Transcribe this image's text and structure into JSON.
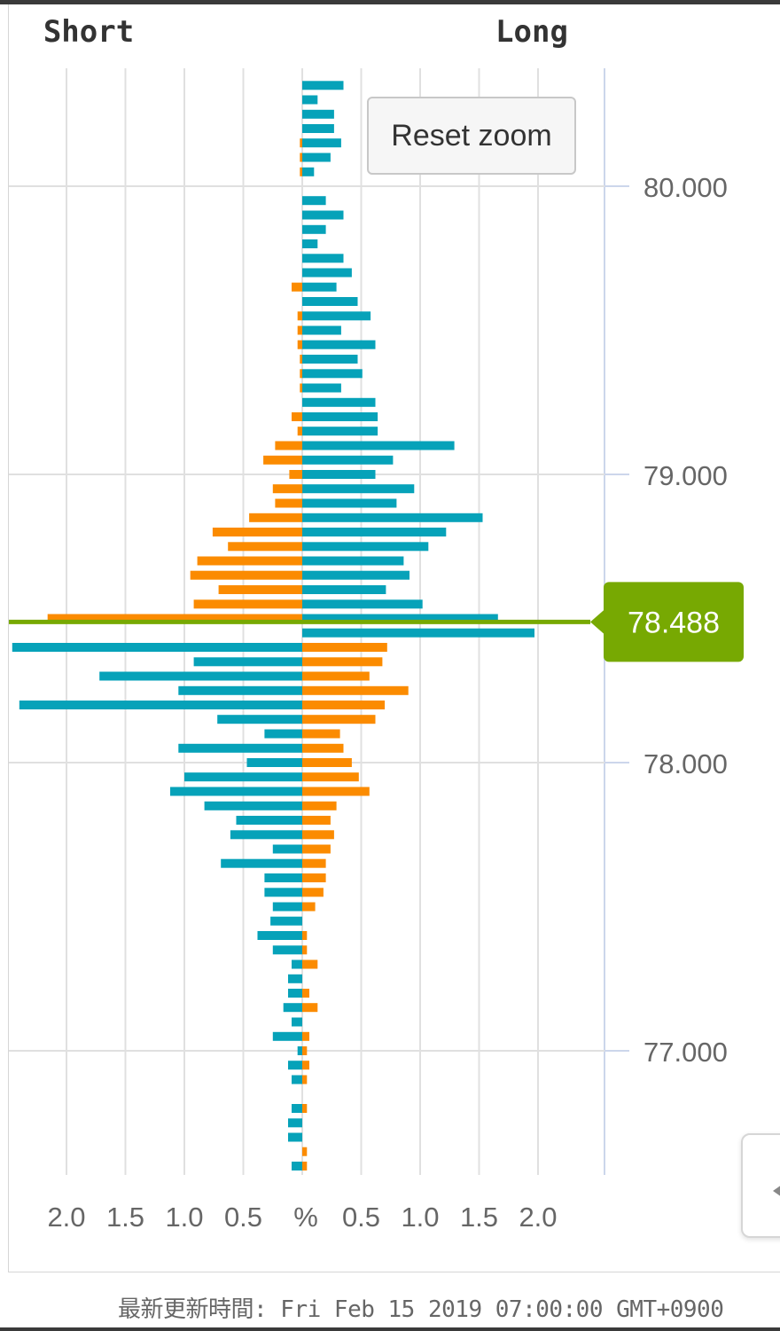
{
  "chart_data": {
    "type": "bar",
    "headers": {
      "left": "Short",
      "right": "Long"
    },
    "x_tick_labels": [
      "2.0",
      "1.5",
      "1.0",
      "0.5",
      "%",
      "0.5",
      "1.0",
      "1.5",
      "2.0"
    ],
    "y_tick_labels": [
      "80.000",
      "79.000",
      "78.000",
      "77.000"
    ],
    "y_ticks": [
      80.0,
      79.0,
      78.0,
      77.0
    ],
    "current_price": {
      "value": 78.488,
      "label": "78.488"
    },
    "colors": {
      "orders": "#06a2b9",
      "positions": "#fb8b00",
      "price": "#77a902",
      "grid": "#e0e0e0"
    },
    "x_unit": "%",
    "price_step": 0.05,
    "series": [
      {
        "key": "orders",
        "prices": [
          80.35,
          80.3,
          80.25,
          80.2,
          80.15,
          80.1,
          80.05,
          79.95,
          79.9,
          79.85,
          79.8,
          79.75,
          79.7,
          79.65,
          79.6,
          79.55,
          79.5,
          79.45,
          79.4,
          79.35,
          79.3,
          79.25,
          79.2,
          79.15,
          79.1,
          79.05,
          79.0,
          78.95,
          78.9,
          78.85,
          78.8,
          78.75,
          78.7,
          78.65,
          78.6,
          78.55,
          78.5,
          78.45,
          78.4,
          78.35,
          78.3,
          78.25,
          78.2,
          78.15,
          78.1,
          78.05,
          78.0,
          77.95,
          77.9,
          77.85,
          77.8,
          77.75,
          77.7,
          77.65,
          77.6,
          77.55,
          77.5,
          77.45,
          77.4,
          77.35,
          77.3,
          77.25,
          77.2,
          77.15,
          77.1,
          77.05,
          77.0,
          76.95,
          76.9,
          76.8,
          76.75,
          76.7,
          76.6
        ],
        "values": [
          0.35,
          0.13,
          0.27,
          0.27,
          0.33,
          0.24,
          0.1,
          0.2,
          0.35,
          0.2,
          0.13,
          0.35,
          0.42,
          0.29,
          0.47,
          0.58,
          0.33,
          0.62,
          0.47,
          0.51,
          0.33,
          0.62,
          0.64,
          0.64,
          1.29,
          0.77,
          0.62,
          0.95,
          0.8,
          1.53,
          1.22,
          1.07,
          0.86,
          0.91,
          0.71,
          1.02,
          1.66,
          1.97,
          2.46,
          0.92,
          1.72,
          1.05,
          2.4,
          0.72,
          0.32,
          1.05,
          0.47,
          1.0,
          1.12,
          0.83,
          0.56,
          0.61,
          0.25,
          0.69,
          0.32,
          0.32,
          0.25,
          0.27,
          0.38,
          0.25,
          0.09,
          0.12,
          0.12,
          0.16,
          0.09,
          0.25,
          0.04,
          0.12,
          0.09,
          0.09,
          0.12,
          0.12,
          0.09
        ],
        "side": [
          "L",
          "L",
          "L",
          "L",
          "L",
          "L",
          "L",
          "L",
          "L",
          "L",
          "L",
          "L",
          "L",
          "L",
          "L",
          "L",
          "L",
          "L",
          "L",
          "L",
          "L",
          "L",
          "L",
          "L",
          "L",
          "L",
          "L",
          "L",
          "L",
          "L",
          "L",
          "L",
          "L",
          "L",
          "L",
          "L",
          "L",
          "L",
          "S",
          "S",
          "S",
          "S",
          "S",
          "S",
          "S",
          "S",
          "S",
          "S",
          "S",
          "S",
          "S",
          "S",
          "S",
          "S",
          "S",
          "S",
          "S",
          "S",
          "S",
          "S",
          "S",
          "S",
          "S",
          "S",
          "S",
          "S",
          "S",
          "S",
          "S",
          "S",
          "S",
          "S",
          "S"
        ]
      },
      {
        "key": "positions",
        "prices": [
          80.15,
          80.1,
          80.05,
          79.65,
          79.55,
          79.5,
          79.45,
          79.4,
          79.35,
          79.3,
          79.2,
          79.15,
          79.1,
          79.05,
          79.0,
          78.95,
          78.9,
          78.85,
          78.8,
          78.75,
          78.7,
          78.65,
          78.6,
          78.55,
          78.5,
          78.4,
          78.35,
          78.3,
          78.25,
          78.2,
          78.15,
          78.1,
          78.05,
          78.0,
          77.95,
          77.9,
          77.85,
          77.8,
          77.75,
          77.7,
          77.65,
          77.6,
          77.55,
          77.5,
          77.4,
          77.35,
          77.3,
          77.2,
          77.15,
          77.05,
          77.0,
          76.95,
          76.9,
          76.8,
          76.65,
          76.6
        ],
        "values": [
          0.02,
          0.02,
          0.02,
          0.09,
          0.04,
          0.04,
          0.04,
          0.02,
          0.02,
          0.02,
          0.09,
          0.04,
          0.23,
          0.33,
          0.11,
          0.25,
          0.23,
          0.45,
          0.76,
          0.63,
          0.89,
          0.95,
          0.71,
          0.92,
          2.16,
          0.72,
          0.68,
          0.57,
          0.9,
          0.7,
          0.62,
          0.32,
          0.35,
          0.42,
          0.48,
          0.57,
          0.29,
          0.24,
          0.27,
          0.24,
          0.2,
          0.2,
          0.18,
          0.11,
          0.04,
          0.04,
          0.13,
          0.06,
          0.13,
          0.06,
          0.04,
          0.06,
          0.04,
          0.04,
          0.04,
          0.04
        ],
        "side": [
          "S",
          "S",
          "S",
          "S",
          "S",
          "S",
          "S",
          "S",
          "S",
          "S",
          "S",
          "S",
          "S",
          "S",
          "S",
          "S",
          "S",
          "S",
          "S",
          "S",
          "S",
          "S",
          "S",
          "S",
          "S",
          "L",
          "L",
          "L",
          "L",
          "L",
          "L",
          "L",
          "L",
          "L",
          "L",
          "L",
          "L",
          "L",
          "L",
          "L",
          "L",
          "L",
          "L",
          "L",
          "L",
          "L",
          "L",
          "L",
          "L",
          "L",
          "L",
          "L",
          "L",
          "L",
          "L",
          "L"
        ]
      }
    ]
  },
  "reset_zoom_label": "Reset zoom",
  "footer_text": "最新更新時間: Fri Feb 15 2019 07:00:00 GMT+0900"
}
